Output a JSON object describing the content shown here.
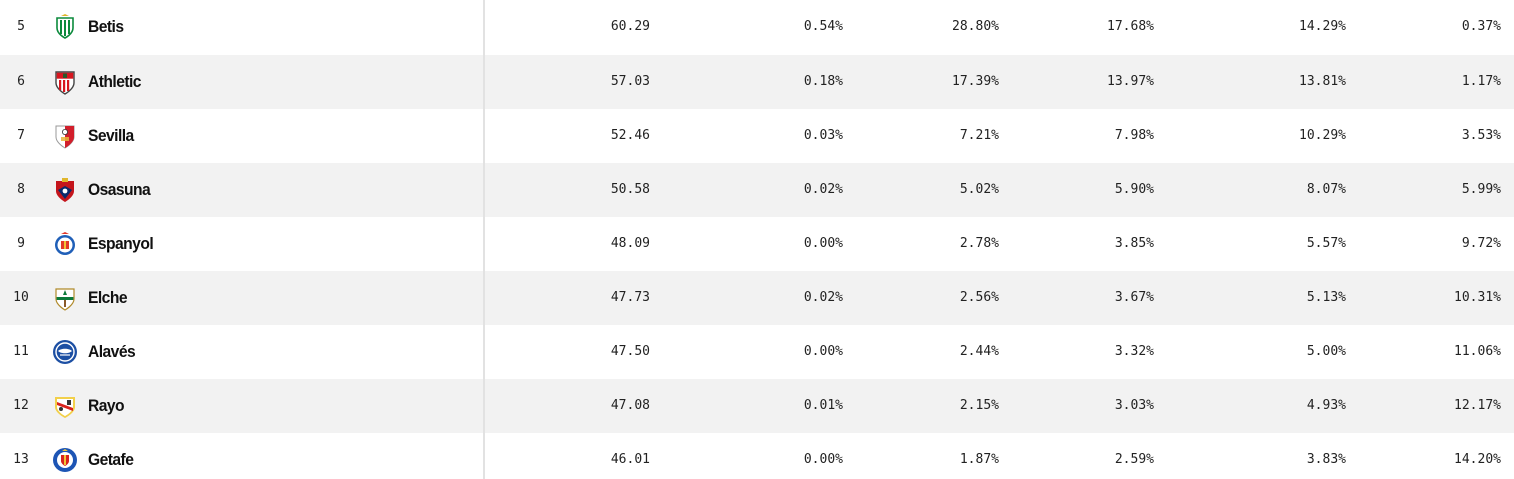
{
  "rows": [
    {
      "rank": "5",
      "team": "Betis",
      "crest": "betis-crest-icon",
      "colors": [
        "#0b8a3c",
        "#ffffff"
      ],
      "values": [
        "60.29",
        "0.54%",
        "28.80%",
        "17.68%",
        "14.29%",
        "0.37%"
      ]
    },
    {
      "rank": "6",
      "team": "Athletic",
      "crest": "athletic-crest-icon",
      "colors": [
        "#d8161f",
        "#ffffff"
      ],
      "values": [
        "57.03",
        "0.18%",
        "17.39%",
        "13.97%",
        "13.81%",
        "1.17%"
      ]
    },
    {
      "rank": "7",
      "team": "Sevilla",
      "crest": "sevilla-crest-icon",
      "colors": [
        "#d21e2b",
        "#ffffff"
      ],
      "values": [
        "52.46",
        "0.03%",
        "7.21%",
        "7.98%",
        "10.29%",
        "3.53%"
      ]
    },
    {
      "rank": "8",
      "team": "Osasuna",
      "crest": "osasuna-crest-icon",
      "colors": [
        "#c4151c",
        "#0a2a6b"
      ],
      "values": [
        "50.58",
        "0.02%",
        "5.02%",
        "5.90%",
        "8.07%",
        "5.99%"
      ]
    },
    {
      "rank": "9",
      "team": "Espanyol",
      "crest": "espanyol-crest-icon",
      "colors": [
        "#1f5fb8",
        "#e23a2d"
      ],
      "values": [
        "48.09",
        "0.00%",
        "2.78%",
        "3.85%",
        "5.57%",
        "9.72%"
      ]
    },
    {
      "rank": "10",
      "team": "Elche",
      "crest": "elche-crest-icon",
      "colors": [
        "#0c7a3a",
        "#ffffff"
      ],
      "values": [
        "47.73",
        "0.02%",
        "2.56%",
        "3.67%",
        "5.13%",
        "10.31%"
      ]
    },
    {
      "rank": "11",
      "team": "Alavés",
      "crest": "alaves-crest-icon",
      "colors": [
        "#1c4fa3",
        "#ffffff"
      ],
      "values": [
        "47.50",
        "0.00%",
        "2.44%",
        "3.32%",
        "5.00%",
        "11.06%"
      ]
    },
    {
      "rank": "12",
      "team": "Rayo",
      "crest": "rayo-crest-icon",
      "colors": [
        "#d9231d",
        "#f2d04a"
      ],
      "values": [
        "47.08",
        "0.01%",
        "2.15%",
        "3.03%",
        "4.93%",
        "12.17%"
      ]
    },
    {
      "rank": "13",
      "team": "Getafe",
      "crest": "getafe-crest-icon",
      "colors": [
        "#1d55b5",
        "#f0c53a"
      ],
      "values": [
        "46.01",
        "0.00%",
        "1.87%",
        "2.59%",
        "3.83%",
        "14.20%"
      ]
    }
  ]
}
